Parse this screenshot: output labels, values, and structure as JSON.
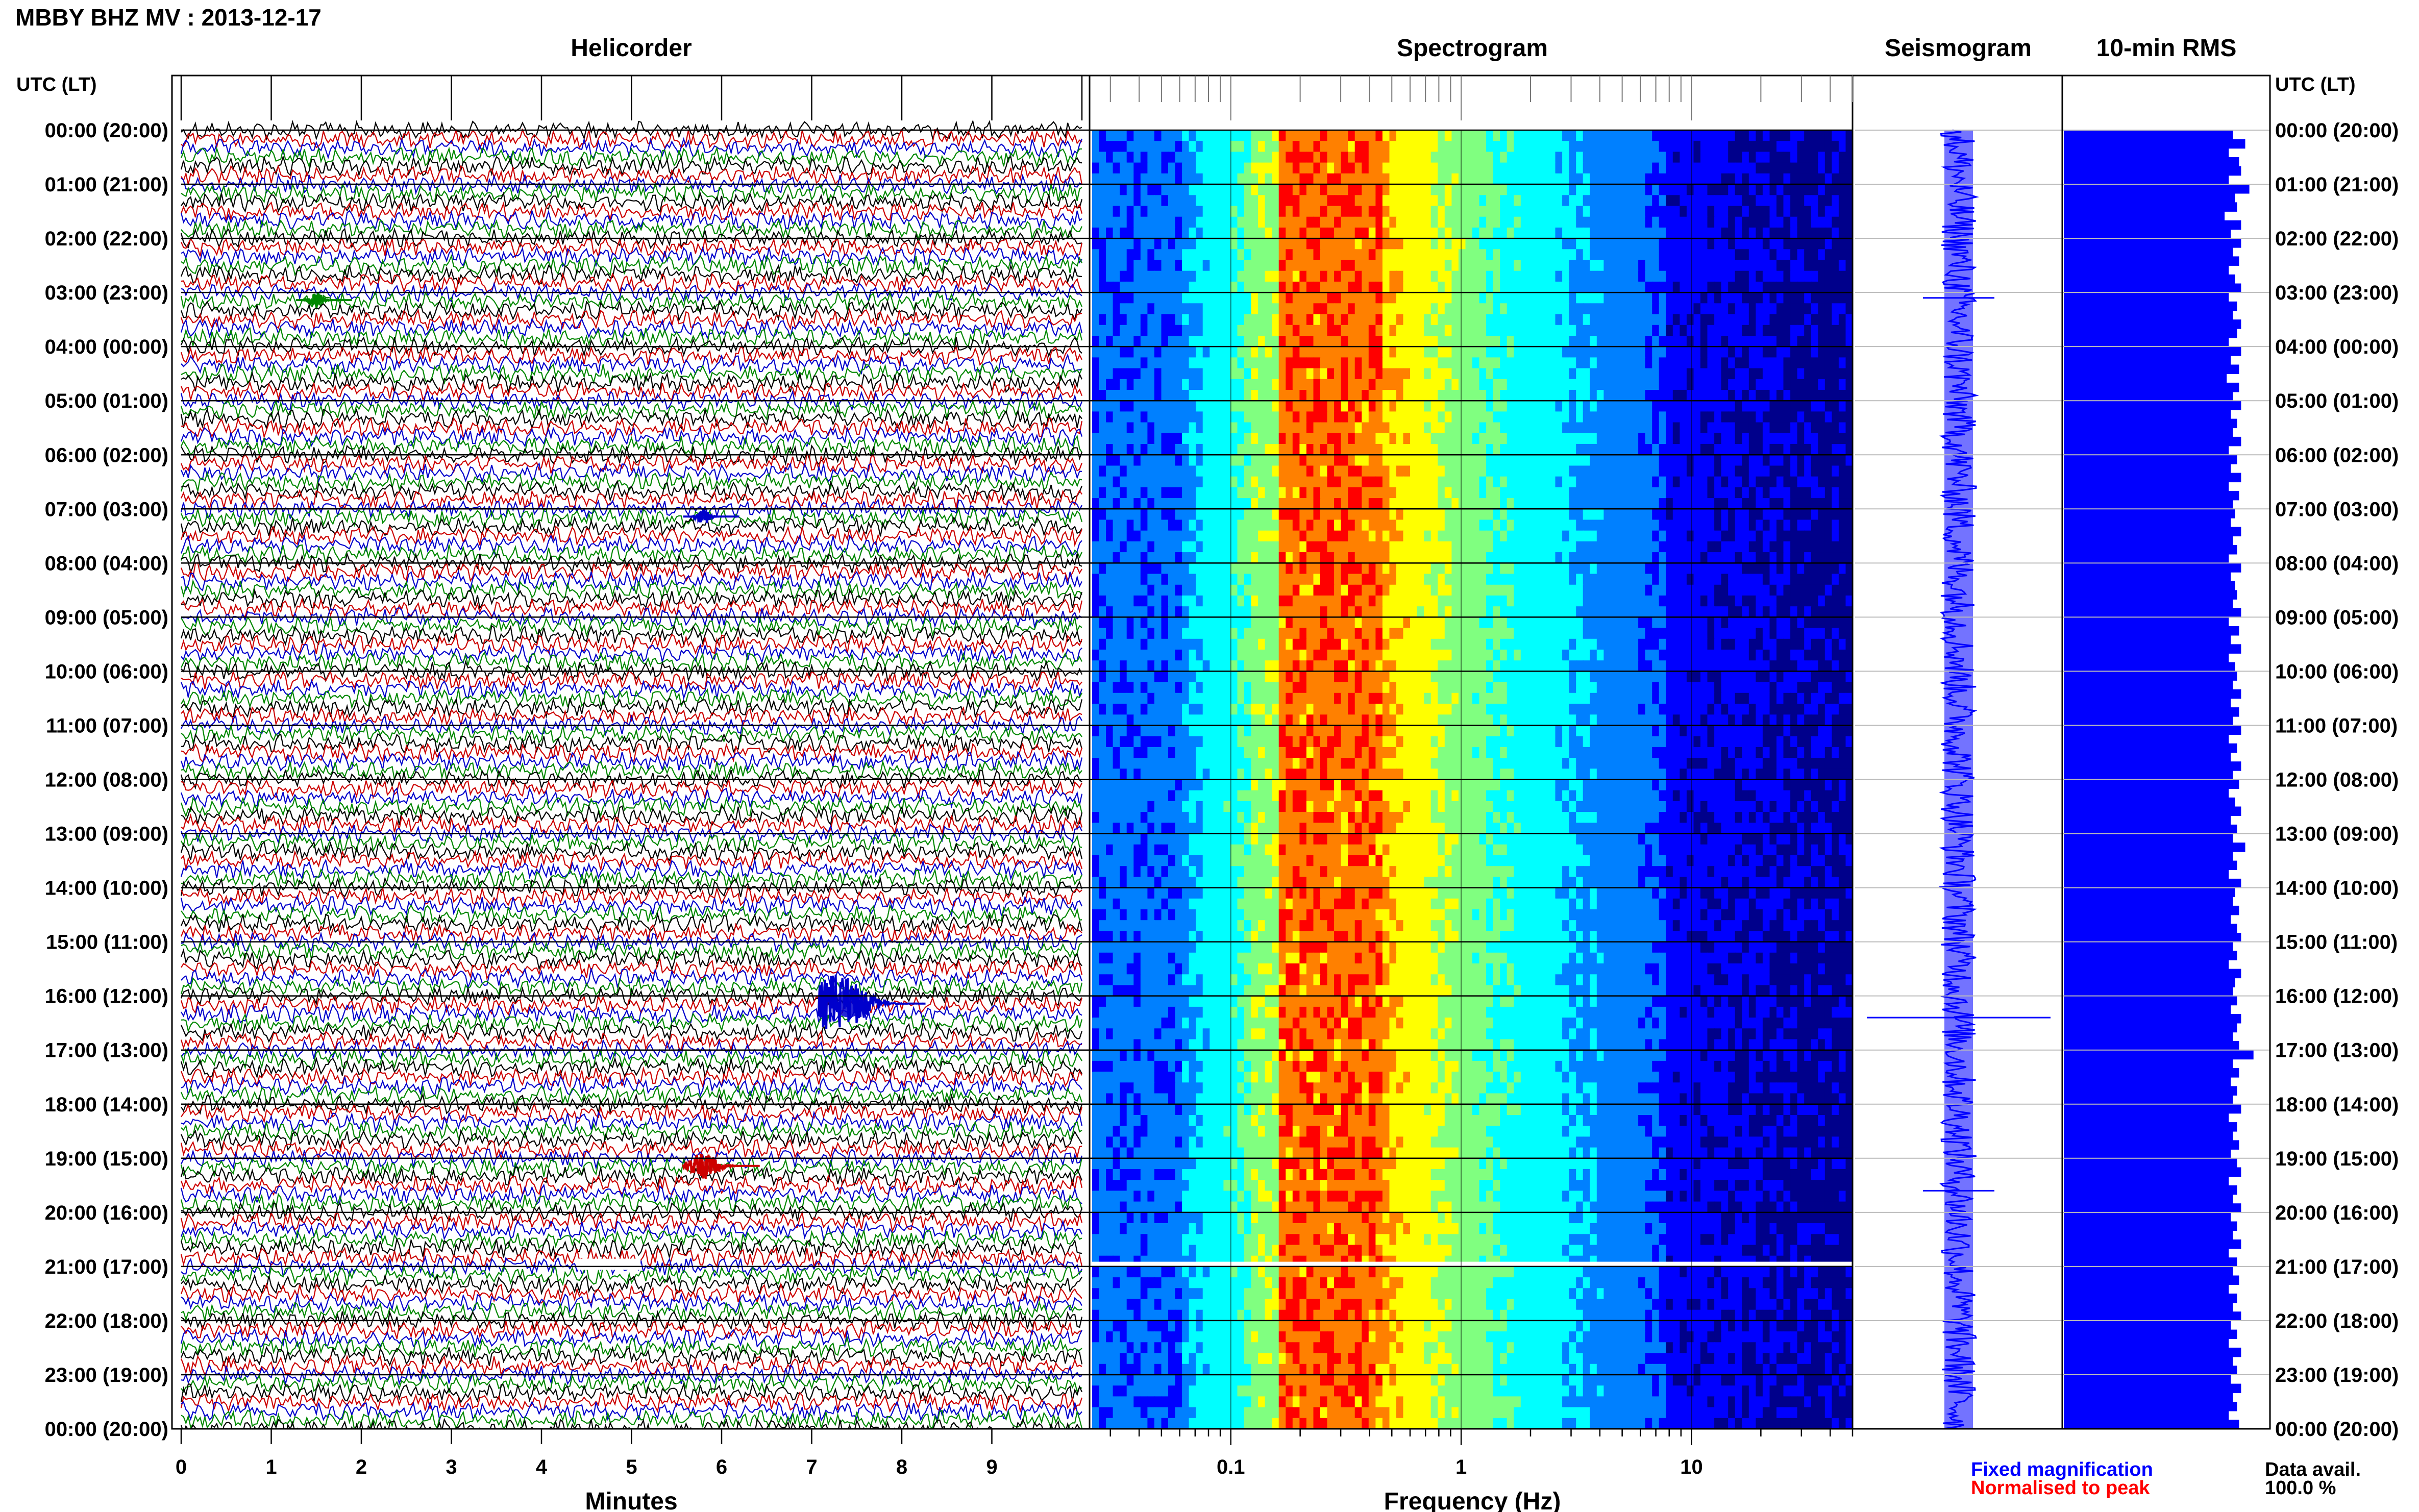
{
  "chart_data": [
    {
      "type": "helicorder",
      "title": "MBBY BHZ MV : 2013-12-17",
      "panel_title": "Helicorder",
      "time_axis_label": "UTC (LT)",
      "time_labels": [
        "00:00 (20:00)",
        "01:00 (21:00)",
        "02:00 (22:00)",
        "03:00 (23:00)",
        "04:00 (00:00)",
        "05:00 (01:00)",
        "06:00 (02:00)",
        "07:00 (03:00)",
        "08:00 (04:00)",
        "09:00 (05:00)",
        "10:00 (06:00)",
        "11:00 (07:00)",
        "12:00 (08:00)",
        "13:00 (09:00)",
        "14:00 (10:00)",
        "15:00 (11:00)",
        "16:00 (12:00)",
        "17:00 (13:00)",
        "18:00 (14:00)",
        "19:00 (15:00)",
        "20:00 (16:00)",
        "21:00 (17:00)",
        "22:00 (18:00)",
        "23:00 (19:00)",
        "00:00 (20:00)"
      ],
      "xlabel": "Minutes",
      "x_ticks": [
        "0",
        "1",
        "2",
        "3",
        "4",
        "5",
        "6",
        "7",
        "8",
        "9"
      ],
      "xlim": [
        0,
        10
      ],
      "trace_colors": [
        "#000000",
        "#cc0000",
        "#0000cc",
        "#008800"
      ],
      "events": [
        {
          "hour": 3,
          "minute": 1.5,
          "color": "#008800",
          "size": "small"
        },
        {
          "hour": 7,
          "minute": 5.8,
          "color": "#0000cc",
          "size": "small"
        },
        {
          "hour": 16,
          "minute": 7.3,
          "color": "#0000cc",
          "size": "large"
        },
        {
          "hour": 19,
          "minute": 5.8,
          "color": "#cc0000",
          "size": "medium"
        }
      ],
      "data_gap": {
        "hour": 20.95,
        "minute_start": 4.4,
        "minute_end": 5.1
      }
    },
    {
      "type": "heatmap",
      "panel_title": "Spectrogram",
      "xlabel": "Frequency (Hz)",
      "x_scale": "log",
      "x_ticks": [
        "0.1",
        "1",
        "10"
      ],
      "xlim": [
        0.025,
        50
      ],
      "peak_band_hz": [
        0.16,
        0.45
      ],
      "colormap": [
        "#00008b",
        "#0000ff",
        "#0080ff",
        "#00ffff",
        "#80ff80",
        "#ffff00",
        "#ff8000",
        "#ff0000"
      ]
    },
    {
      "type": "line",
      "panel_title": "Seismogram",
      "color": "#0000ff",
      "spikes_hours": [
        3.1,
        16.4,
        19.6
      ]
    },
    {
      "type": "bar",
      "panel_title": "10-min RMS",
      "orientation": "horizontal",
      "color": "#0000ff",
      "relative_values": [
        0.82,
        0.88,
        0.8,
        0.85,
        0.86,
        0.8,
        0.9,
        0.83,
        0.84,
        0.78,
        0.86,
        0.81,
        0.86,
        0.82,
        0.85,
        0.8,
        0.83,
        0.86,
        0.8,
        0.84,
        0.82,
        0.86,
        0.84,
        0.8,
        0.86,
        0.81,
        0.85,
        0.79,
        0.85,
        0.82,
        0.86,
        0.81,
        0.84,
        0.82,
        0.86,
        0.8,
        0.84,
        0.81,
        0.86,
        0.8,
        0.85,
        0.82,
        0.83,
        0.81,
        0.86,
        0.82,
        0.84,
        0.8,
        0.86,
        0.81,
        0.83,
        0.84,
        0.82,
        0.86,
        0.8,
        0.85,
        0.81,
        0.86,
        0.8,
        0.83,
        0.84,
        0.82,
        0.86,
        0.81,
        0.85,
        0.82,
        0.86,
        0.8,
        0.84,
        0.81,
        0.86,
        0.82,
        0.85,
        0.8,
        0.83,
        0.86,
        0.81,
        0.84,
        0.82,
        0.88,
        0.82,
        0.84,
        0.8,
        0.86,
        0.83,
        0.82,
        0.85,
        0.81,
        0.84,
        0.86,
        0.82,
        0.84,
        0.8,
        0.86,
        0.83,
        0.82,
        0.84,
        0.81,
        0.86,
        0.84,
        0.82,
        0.85,
        0.92,
        0.82,
        0.85,
        0.81,
        0.84,
        0.82,
        0.86,
        0.8,
        0.84,
        0.82,
        0.85,
        0.81,
        0.84,
        0.86,
        0.8,
        0.84,
        0.82,
        0.86,
        0.81,
        0.84,
        0.82,
        0.86,
        0.8,
        0.84,
        0.82,
        0.85,
        0.8,
        0.84,
        0.82,
        0.86,
        0.81,
        0.84,
        0.8,
        0.86,
        0.82,
        0.84,
        0.81,
        0.86,
        0.82,
        0.84,
        0.8,
        0.85
      ]
    }
  ],
  "legend": {
    "fixed": "Fixed magnification",
    "normalised": "Normalised to peak",
    "fixed_color": "#0000ff",
    "normalised_color": "#ff0000"
  },
  "availability": {
    "label": "Data avail.",
    "value": "100.0 %"
  }
}
